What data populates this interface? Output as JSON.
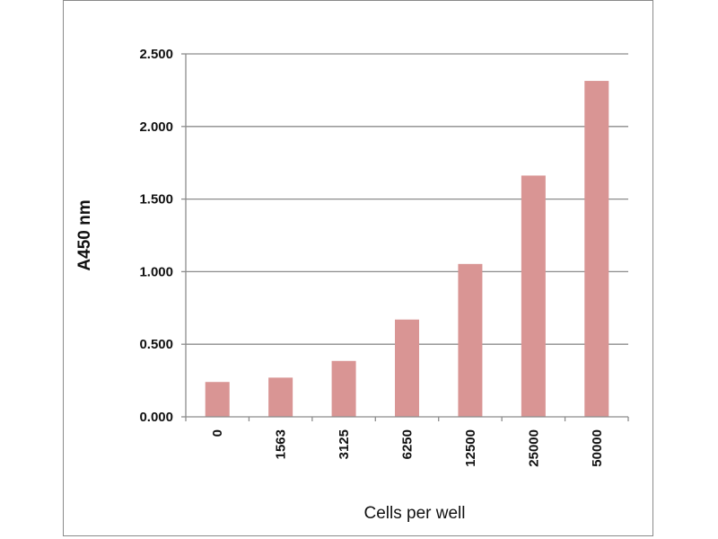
{
  "chart_data": {
    "type": "bar",
    "title": "",
    "xlabel": "Cells per well",
    "ylabel": "A450 nm",
    "categories": [
      "0",
      "1563",
      "3125",
      "6250",
      "12500",
      "25000",
      "50000"
    ],
    "values": [
      0.24,
      0.27,
      0.385,
      0.67,
      1.053,
      1.662,
      2.314
    ],
    "ylim": [
      0,
      2.5
    ],
    "yticks": [
      "0.000",
      "0.500",
      "1.000",
      "1.500",
      "2.000",
      "2.500"
    ],
    "ytick_values": [
      0,
      0.5,
      1.0,
      1.5,
      2.0,
      2.5
    ],
    "grid": true,
    "legend": "none",
    "bar_color": "#d99594",
    "grid_color": "#8c8c8c"
  }
}
